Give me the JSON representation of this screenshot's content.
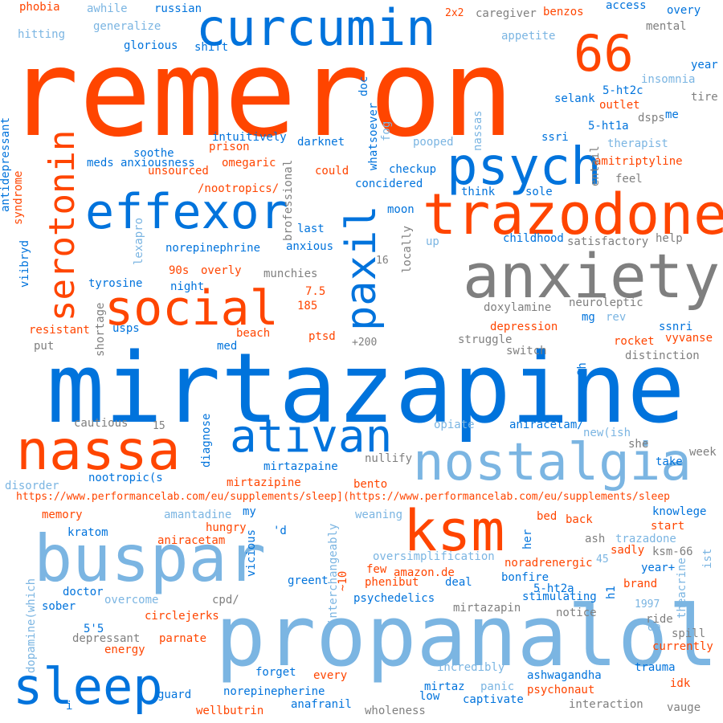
{
  "palette": {
    "orange": "#ff4500",
    "blue": "#0073dc",
    "light_blue": "#7bb5e2",
    "gray": "#7f7f7f"
  },
  "words": {
    "remeron": "remeron",
    "mirtazapine": "mirtazapine",
    "propanalol": "propanalol",
    "buspar": "buspar",
    "nostalgia": "nostalgia",
    "anxiety": "anxiety",
    "trazodone": "trazodone",
    "curcumin": "curcumin",
    "effexor": "effexor",
    "psych": "psych",
    "social": "social",
    "nassa": "nassa",
    "ksm": "ksm",
    "ativan": "ativan",
    "sleep": "sleep",
    "n66": "66",
    "serotonin": "serotonin",
    "paxil": "paxil",
    "phobia": "phobia",
    "awhile": "awhile",
    "russian": "russian",
    "n2x2": "2x2",
    "caregiver": "caregiver",
    "benzos": "benzos",
    "access": "access",
    "overy": "overy",
    "hitting": "hitting",
    "generalize": "generalize",
    "appetite": "appetite",
    "mental": "mental",
    "glorious": "glorious",
    "shift": "shift",
    "year": "year",
    "insomnia": "insomnia",
    "selank": "selank",
    "ht2c": "5-ht2c",
    "tire": "tire",
    "outlet": "outlet",
    "me": "me",
    "dsps": "dsps",
    "ht1a": "5-ht1a",
    "intuitively": "intuitively",
    "ssri": "ssri",
    "darknet": "darknet",
    "pooped": "pooped",
    "therapist": "therapist",
    "soothe": "soothe",
    "prison": "prison",
    "meds": "meds",
    "anxiousness": "anxiousness",
    "omegaric": "omegaric",
    "amitriptyline": "amitriptyline",
    "unsourced": "unsourced",
    "checkup": "checkup",
    "could": "could",
    "feel": "feel",
    "concidered": "concidered",
    "nootropics": "/nootropics/",
    "think": "think",
    "sole": "sole",
    "moon": "moon",
    "last": "last",
    "childhood": "childhood",
    "help": "help",
    "satisfactory": "satisfactory",
    "anxious": "anxious",
    "up": "up",
    "norepinephrine": "norepinephrine",
    "n90s": "90s",
    "overly": "overly",
    "munchies": "munchies",
    "n16": "16",
    "tyrosine": "tyrosine",
    "night": "night",
    "n75": "7.5",
    "n185": "185",
    "doxylamine": "doxylamine",
    "neuroleptic": "neuroleptic",
    "mg": "mg",
    "rev": "rev",
    "resistant": "resistant",
    "usps": "usps",
    "beach": "beach",
    "depression": "depression",
    "ssnri": "ssnri",
    "ptsd": "ptsd",
    "struggle": "struggle",
    "rocket": "rocket",
    "vyvanse": "vyvanse",
    "put": "put",
    "med": "med",
    "n200": "+200",
    "switch": "switch",
    "distinction": "distinction",
    "cautious": "cautious",
    "n15": "15",
    "opiate": "opiate",
    "aniracetam2": "aniracetam/",
    "newish": "new(ish",
    "she": "she",
    "week": "week",
    "nullify": "nullify",
    "mirtazpaine": "mirtazpaine",
    "take": "take",
    "nootropics2": "nootropic(s",
    "disorder": "disorder",
    "mirtazipine": "mirtazipine",
    "bento": "bento",
    "url": "https://www.performancelab.com/eu/supplements/sleep](https://www.performancelab.com/eu/supplements/sleep",
    "memory": "memory",
    "amantadine": "amantadine",
    "my": "my",
    "weaning": "weaning",
    "bed": "bed",
    "knowlege": "knowlege",
    "kratom": "kratom",
    "hungry": "hungry",
    "d": "'d",
    "back": "back",
    "start": "start",
    "aniracetam": "aniracetam",
    "ash": "ash",
    "trazadone": "trazadone",
    "oversimplification": "oversimplification",
    "sadly": "sadly",
    "ksm66": "ksm-66",
    "few": "few",
    "noradrenergic": "noradrenergic",
    "n45": "45",
    "amazon": "amazon.de",
    "bonfire": "bonfire",
    "greent": "greent",
    "phenibut": "phenibut",
    "deal": "deal",
    "brand": "brand",
    "year2": "year+",
    "doctor": "doctor",
    "overcome": "overcome",
    "cpd": "cpd/",
    "psychedelics": "psychedelics",
    "ht2a": "5-ht2a",
    "stimulating": "stimulating",
    "sober": "sober",
    "mirtazapin": "mirtazapin",
    "n1997": "1997",
    "notice": "notice",
    "ride": "ride",
    "n55": "5'5",
    "circlejerks": "circlejerks",
    "da": "da",
    "spill": "spill",
    "depressant": "depressant",
    "energy": "energy",
    "parnate": "parnate",
    "currently": "currently",
    "incredibly": "incredibly",
    "forget": "forget",
    "every": "every",
    "ashwagandha": "ashwagandha",
    "trauma": "trauma",
    "panic": "panic",
    "guard": "guard",
    "norepinepherine": "norepinepherine",
    "mirtaz": "mirtaz",
    "psychonaut": "psychonaut",
    "idk": "idk",
    "low": "low",
    "captivate": "captivate",
    "anafranil": "anafranil",
    "i": "i",
    "interaction": "interaction",
    "vauge": "vauge",
    "wellbutrin": "wellbutrin",
    "wholeness": "wholeness",
    "antidepressant": "antidepressant",
    "syndrome": "syndrome",
    "viibryd": "viibryd",
    "lexapro": "lexapro",
    "brofessional": "brofessional",
    "whatsoever": "whatsoever",
    "doc": "doc",
    "fog": "fog",
    "nassas": "nassas",
    "entail": "entail",
    "locally": "locally",
    "shortage": "shortage",
    "n8h": "8h",
    "diagnose": "diagnose",
    "vicious": "vicious",
    "her": "her",
    "interchangeably": "interchangeably",
    "n10": "~10",
    "h1": "h1",
    "theacrine": "theacrine",
    "ist": "ist",
    "dopamine": "dopamine(which"
  }
}
